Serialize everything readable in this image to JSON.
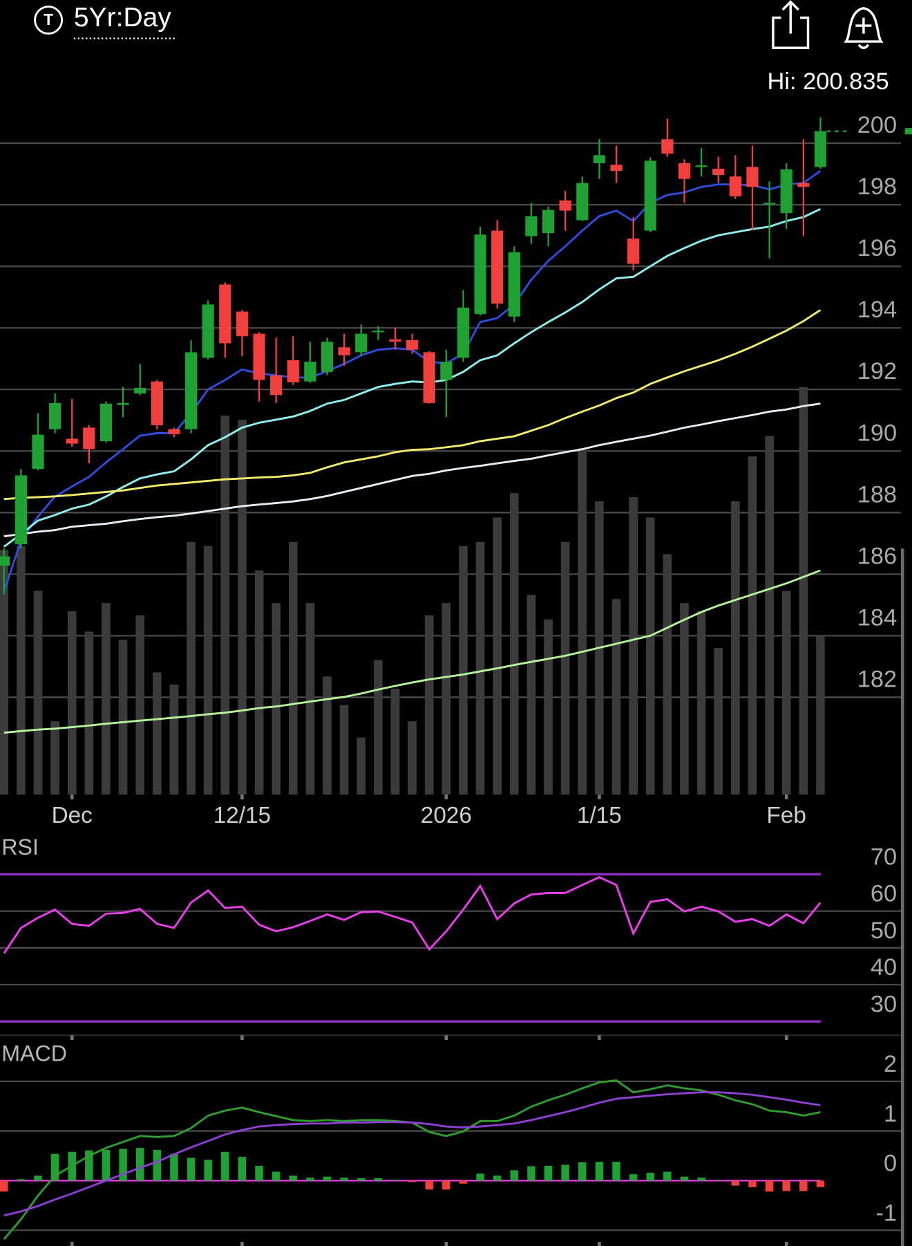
{
  "header": {
    "icon_letter": "T",
    "range": "5Yr:Day"
  },
  "chart_data": [
    {
      "type": "candlestick",
      "annotation": "Hi: 200.835",
      "categories": [
        null,
        null,
        null,
        null,
        "Dec",
        null,
        null,
        null,
        null,
        null,
        null,
        null,
        null,
        null,
        "12/15",
        null,
        null,
        null,
        null,
        null,
        null,
        null,
        null,
        null,
        null,
        null,
        "2026",
        null,
        null,
        null,
        null,
        null,
        null,
        null,
        null,
        "1/15",
        null,
        null,
        null,
        null,
        null,
        null,
        null,
        null,
        null,
        null,
        "Feb",
        null,
        null
      ],
      "open": [
        186.27,
        186.97,
        189.42,
        190.71,
        190.4,
        190.76,
        190.32,
        191.5,
        191.87,
        192.26,
        190.71,
        190.71,
        193.03,
        195.41,
        194.53,
        193.81,
        192.46,
        192.95,
        192.26,
        192.57,
        193.37,
        193.21,
        193.86,
        193.63,
        193.6,
        193.21,
        192.31,
        193.03,
        194.45,
        197.16,
        194.37,
        196.98,
        197.08,
        198.14,
        197.5,
        199.35,
        199.3,
        196.9,
        197.16,
        200.13,
        199.35,
        199.23,
        199.17,
        198.92,
        199.23,
        198.04,
        197.73,
        198.71,
        199.23
      ],
      "high": [
        186.84,
        189.42,
        191.23,
        191.87,
        191.69,
        190.84,
        191.61,
        192.08,
        192.83,
        192.31,
        190.76,
        193.6,
        194.89,
        195.48,
        194.58,
        193.86,
        193.68,
        193.73,
        193.55,
        193.68,
        193.81,
        194.11,
        194.06,
        194.01,
        193.81,
        193.24,
        193.29,
        195.23,
        197.29,
        197.5,
        196.65,
        198.06,
        197.94,
        198.45,
        198.92,
        200.13,
        199.92,
        197.6,
        199.54,
        200.8,
        199.48,
        199.85,
        199.56,
        199.61,
        199.92,
        198.76,
        199.35,
        200.13,
        200.84
      ],
      "low": [
        185.34,
        186.84,
        189.37,
        190.58,
        190.14,
        189.6,
        190.27,
        191.1,
        191.82,
        190.71,
        190.45,
        190.58,
        192.98,
        193.03,
        193.08,
        191.61,
        191.56,
        192.15,
        192.21,
        192.46,
        192.77,
        193.08,
        193.6,
        193.29,
        193.16,
        191.54,
        191.1,
        192.9,
        194.4,
        194.63,
        194.19,
        196.72,
        196.65,
        197.16,
        197.47,
        198.84,
        198.71,
        195.87,
        197.11,
        199.56,
        198.06,
        198.92,
        198.71,
        198.19,
        197.16,
        196.26,
        197.21,
        196.98,
        199.17
      ],
      "close": [
        186.58,
        189.21,
        190.53,
        191.56,
        190.24,
        190.06,
        191.54,
        191.56,
        192.05,
        190.84,
        190.55,
        193.21,
        194.76,
        193.5,
        193.73,
        192.31,
        191.82,
        192.23,
        192.9,
        193.55,
        193.11,
        193.81,
        193.91,
        193.55,
        193.29,
        191.56,
        192.9,
        194.66,
        197.03,
        194.79,
        196.46,
        197.63,
        197.83,
        197.81,
        198.71,
        199.61,
        199.1,
        196.08,
        199.43,
        199.66,
        198.84,
        199.28,
        198.97,
        198.27,
        198.58,
        198.06,
        199.15,
        198.58,
        200.39
      ],
      "up_color": "#1fa233",
      "down_color": "#f2403f",
      "volume": {
        "color": "#3b3b3b",
        "ylim": [
          0,
          100
        ],
        "values": [
          60,
          61,
          50,
          18,
          45,
          40,
          47,
          38,
          44,
          30,
          27,
          62,
          61,
          93,
          92,
          55,
          47,
          62,
          47,
          29,
          22,
          14,
          33,
          26,
          18,
          44,
          47,
          61,
          62,
          68,
          74,
          49,
          43,
          62,
          85,
          72,
          48,
          73,
          68,
          59,
          47,
          45,
          36,
          72,
          83,
          88,
          50,
          100,
          39
        ]
      },
      "series": [
        {
          "color": "#2f4fe0",
          "values": [
            185.42,
            187.1,
            187.87,
            188.52,
            188.85,
            189.16,
            189.63,
            190.06,
            190.5,
            190.58,
            190.58,
            191.23,
            192.0,
            192.31,
            192.65,
            192.52,
            192.46,
            192.39,
            192.39,
            192.59,
            192.83,
            193.11,
            193.29,
            193.34,
            193.29,
            192.9,
            192.85,
            193.16,
            194.19,
            194.32,
            194.76,
            195.56,
            196.18,
            196.65,
            197.16,
            197.63,
            197.81,
            197.47,
            198.06,
            198.32,
            198.4,
            198.58,
            198.66,
            198.66,
            198.63,
            198.5,
            198.66,
            198.71,
            199.1
          ]
        },
        {
          "color": "#8ff0f0",
          "values": [
            186.89,
            187.3,
            187.74,
            187.92,
            188.13,
            188.26,
            188.52,
            188.83,
            189.11,
            189.24,
            189.34,
            189.73,
            190.19,
            190.45,
            190.76,
            190.92,
            191.02,
            191.12,
            191.3,
            191.54,
            191.66,
            191.87,
            192.08,
            192.18,
            192.26,
            192.23,
            192.31,
            192.57,
            192.95,
            193.11,
            193.5,
            193.86,
            194.19,
            194.5,
            194.84,
            195.25,
            195.61,
            195.66,
            196.0,
            196.34,
            196.59,
            196.83,
            197.01,
            197.11,
            197.21,
            197.29,
            197.47,
            197.6,
            197.86
          ]
        },
        {
          "color": "#f4ee6a",
          "values": [
            188.44,
            188.48,
            188.5,
            188.53,
            188.57,
            188.62,
            188.67,
            188.72,
            188.8,
            188.88,
            188.93,
            188.98,
            189.03,
            189.08,
            189.11,
            189.14,
            189.16,
            189.21,
            189.29,
            189.47,
            189.63,
            189.73,
            189.83,
            189.96,
            190.04,
            190.06,
            190.12,
            190.19,
            190.32,
            190.4,
            190.48,
            190.66,
            190.84,
            191.07,
            191.28,
            191.48,
            191.72,
            191.9,
            192.18,
            192.39,
            192.59,
            192.77,
            192.95,
            193.16,
            193.39,
            193.65,
            193.91,
            194.22,
            194.58
          ]
        },
        {
          "color": "#e8eef6",
          "values": [
            187.23,
            187.3,
            187.38,
            187.43,
            187.54,
            187.59,
            187.64,
            187.72,
            187.79,
            187.85,
            187.9,
            187.97,
            188.05,
            188.13,
            188.21,
            188.26,
            188.31,
            188.36,
            188.44,
            188.54,
            188.67,
            188.8,
            188.93,
            189.06,
            189.19,
            189.26,
            189.37,
            189.45,
            189.52,
            189.6,
            189.68,
            189.75,
            189.86,
            189.96,
            190.06,
            190.19,
            190.3,
            190.4,
            190.5,
            190.63,
            190.76,
            190.86,
            190.97,
            191.07,
            191.17,
            191.28,
            191.35,
            191.46,
            191.54
          ]
        },
        {
          "color": "#b6f59a",
          "values": [
            180.85,
            180.9,
            180.95,
            180.98,
            181.03,
            181.08,
            181.14,
            181.19,
            181.24,
            181.29,
            181.34,
            181.39,
            181.45,
            181.5,
            181.57,
            181.65,
            181.7,
            181.78,
            181.86,
            181.94,
            182.01,
            182.12,
            182.25,
            182.37,
            182.48,
            182.58,
            182.66,
            182.74,
            182.84,
            182.94,
            183.05,
            183.15,
            183.25,
            183.35,
            183.48,
            183.61,
            183.74,
            183.87,
            184.0,
            184.26,
            184.52,
            184.77,
            184.98,
            185.16,
            185.34,
            185.52,
            185.7,
            185.91,
            186.12
          ]
        }
      ],
      "ylim": [
        179,
        201
      ],
      "yticks": [
        182,
        184,
        186,
        188,
        190,
        192,
        194,
        196,
        198,
        200
      ],
      "grid": true,
      "grid_color": "#4a4a4a"
    },
    {
      "type": "line",
      "title": "RSI",
      "color": "#ee3fee",
      "values": [
        48.5,
        55.4,
        58.2,
        60.4,
        56.5,
        56.0,
        59.3,
        59.5,
        60.6,
        56.5,
        55.4,
        62.3,
        65.6,
        60.8,
        61.2,
        56.3,
        54.5,
        55.6,
        57.3,
        59.1,
        57.6,
        59.7,
        59.9,
        58.4,
        56.9,
        49.6,
        54.5,
        60.4,
        66.8,
        57.8,
        62.1,
        64.5,
        64.9,
        64.9,
        67.1,
        69.2,
        67.1,
        53.9,
        62.5,
        63.2,
        59.9,
        61.2,
        59.9,
        57.1,
        57.8,
        56.0,
        59.1,
        56.7,
        62.3
      ],
      "ylim": [
        25,
        80
      ],
      "yticks": [
        30,
        40,
        50,
        60,
        70
      ],
      "grid": true,
      "grid_color": "#4a4a4a",
      "levels": [
        30,
        70
      ],
      "level_color": "#8e2fc4"
    },
    {
      "type": "macd",
      "title": "MACD",
      "series": [
        {
          "color": "#2f9e2f",
          "values": [
            -1.18,
            -0.78,
            -0.3,
            0.1,
            0.3,
            0.5,
            0.66,
            0.78,
            0.9,
            0.88,
            0.9,
            1.06,
            1.31,
            1.41,
            1.47,
            1.38,
            1.3,
            1.22,
            1.2,
            1.22,
            1.2,
            1.22,
            1.22,
            1.2,
            1.17,
            0.98,
            0.9,
            0.99,
            1.2,
            1.2,
            1.31,
            1.49,
            1.62,
            1.73,
            1.86,
            1.98,
            2.02,
            1.78,
            1.84,
            1.92,
            1.86,
            1.82,
            1.73,
            1.62,
            1.54,
            1.41,
            1.38,
            1.31,
            1.38
          ]
        },
        {
          "color": "#8e3fd4",
          "values": [
            -0.7,
            -0.62,
            -0.51,
            -0.38,
            -0.26,
            -0.13,
            0.0,
            0.13,
            0.26,
            0.38,
            0.53,
            0.67,
            0.8,
            0.93,
            1.02,
            1.09,
            1.12,
            1.14,
            1.15,
            1.15,
            1.17,
            1.17,
            1.18,
            1.18,
            1.17,
            1.14,
            1.09,
            1.07,
            1.09,
            1.12,
            1.15,
            1.22,
            1.3,
            1.38,
            1.47,
            1.57,
            1.65,
            1.68,
            1.71,
            1.74,
            1.76,
            1.78,
            1.78,
            1.76,
            1.73,
            1.68,
            1.63,
            1.57,
            1.52
          ]
        }
      ],
      "histogram": {
        "up_color": "#1fa233",
        "down_color": "#f2403f",
        "values": [
          -0.22,
          0.03,
          0.1,
          0.54,
          0.58,
          0.61,
          0.62,
          0.64,
          0.66,
          0.62,
          0.54,
          0.46,
          0.42,
          0.58,
          0.48,
          0.3,
          0.18,
          0.1,
          0.06,
          0.08,
          0.06,
          0.05,
          0.05,
          0.02,
          -0.03,
          -0.18,
          -0.18,
          -0.06,
          0.14,
          0.1,
          0.21,
          0.29,
          0.3,
          0.32,
          0.37,
          0.38,
          0.38,
          0.13,
          0.16,
          0.18,
          0.08,
          0.06,
          0.01,
          -0.1,
          -0.13,
          -0.22,
          -0.21,
          -0.21,
          -0.13
        ]
      },
      "ylim": [
        -1.3,
        2.8
      ],
      "yticks": [
        -1,
        0,
        1,
        2
      ],
      "grid": true,
      "grid_color": "#4a4a4a",
      "zero_line_color": "#e83fe0"
    }
  ]
}
